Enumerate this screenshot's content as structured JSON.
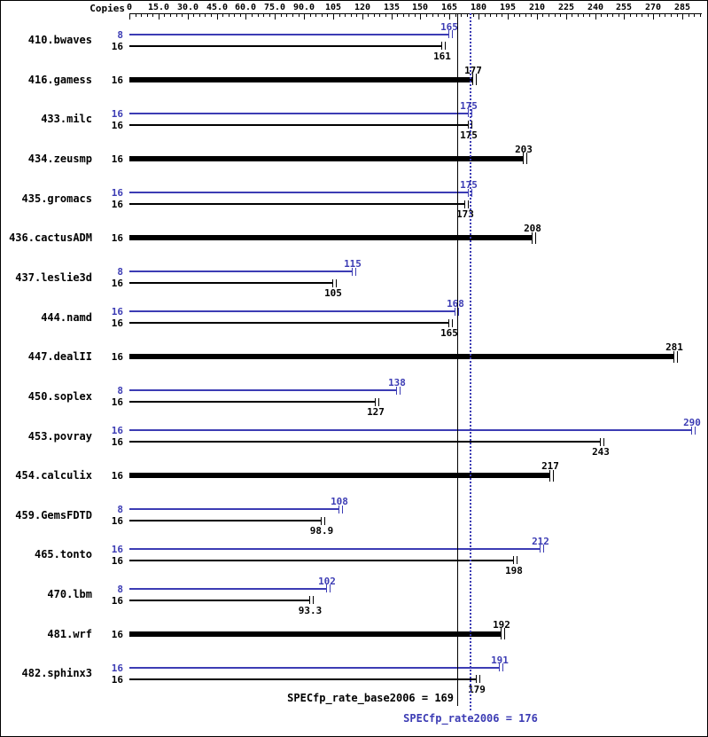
{
  "chart_data": {
    "type": "bar",
    "orientation": "horizontal",
    "copies_header": "Copies",
    "x_axis": {
      "min": 0,
      "max": 295,
      "major_tick_step": 15,
      "minor_tick_step": 3,
      "tick_labels": [
        "0",
        "15.0",
        "30.0",
        "45.0",
        "60.0",
        "75.0",
        "90.0",
        "105",
        "120",
        "135",
        "150",
        "165",
        "180",
        "195",
        "210",
        "225",
        "240",
        "255",
        "270",
        "285"
      ]
    },
    "colors": {
      "peak": "#3c3cb4",
      "base": "#000000"
    },
    "benchmarks": [
      {
        "name": "410.bwaves",
        "bars": [
          {
            "copies": "8",
            "value": 165,
            "label": "165",
            "series": "peak"
          },
          {
            "copies": "16",
            "value": 161,
            "label": "161",
            "series": "base"
          }
        ]
      },
      {
        "name": "416.gamess",
        "bars": [
          {
            "copies": "16",
            "value": 177,
            "label": "177",
            "series": "base"
          }
        ]
      },
      {
        "name": "433.milc",
        "bars": [
          {
            "copies": "16",
            "value": 175,
            "label": "175",
            "series": "peak"
          },
          {
            "copies": "16",
            "value": 175,
            "label": "175",
            "series": "base"
          }
        ]
      },
      {
        "name": "434.zeusmp",
        "bars": [
          {
            "copies": "16",
            "value": 203,
            "label": "203",
            "series": "base"
          }
        ]
      },
      {
        "name": "435.gromacs",
        "bars": [
          {
            "copies": "16",
            "value": 175,
            "label": "175",
            "series": "peak"
          },
          {
            "copies": "16",
            "value": 173,
            "label": "173",
            "series": "base"
          }
        ]
      },
      {
        "name": "436.cactusADM",
        "bars": [
          {
            "copies": "16",
            "value": 208,
            "label": "208",
            "series": "base"
          }
        ]
      },
      {
        "name": "437.leslie3d",
        "bars": [
          {
            "copies": "8",
            "value": 115,
            "label": "115",
            "series": "peak"
          },
          {
            "copies": "16",
            "value": 105,
            "label": "105",
            "series": "base"
          }
        ]
      },
      {
        "name": "444.namd",
        "bars": [
          {
            "copies": "16",
            "value": 168,
            "label": "168",
            "series": "peak"
          },
          {
            "copies": "16",
            "value": 165,
            "label": "165",
            "series": "base"
          }
        ]
      },
      {
        "name": "447.dealII",
        "bars": [
          {
            "copies": "16",
            "value": 281,
            "label": "281",
            "series": "base"
          }
        ]
      },
      {
        "name": "450.soplex",
        "bars": [
          {
            "copies": "8",
            "value": 138,
            "label": "138",
            "series": "peak"
          },
          {
            "copies": "16",
            "value": 127,
            "label": "127",
            "series": "base"
          }
        ]
      },
      {
        "name": "453.povray",
        "bars": [
          {
            "copies": "16",
            "value": 290,
            "label": "290",
            "series": "peak"
          },
          {
            "copies": "16",
            "value": 243,
            "label": "243",
            "series": "base"
          }
        ]
      },
      {
        "name": "454.calculix",
        "bars": [
          {
            "copies": "16",
            "value": 217,
            "label": "217",
            "series": "base"
          }
        ]
      },
      {
        "name": "459.GemsFDTD",
        "bars": [
          {
            "copies": "8",
            "value": 108,
            "label": "108",
            "series": "peak"
          },
          {
            "copies": "16",
            "value": 98.9,
            "label": "98.9",
            "series": "base"
          }
        ]
      },
      {
        "name": "465.tonto",
        "bars": [
          {
            "copies": "16",
            "value": 212,
            "label": "212",
            "series": "peak"
          },
          {
            "copies": "16",
            "value": 198,
            "label": "198",
            "series": "base"
          }
        ]
      },
      {
        "name": "470.lbm",
        "bars": [
          {
            "copies": "8",
            "value": 102,
            "label": "102",
            "series": "peak"
          },
          {
            "copies": "16",
            "value": 93.3,
            "label": "93.3",
            "series": "base"
          }
        ]
      },
      {
        "name": "481.wrf",
        "bars": [
          {
            "copies": "16",
            "value": 192,
            "label": "192",
            "series": "base"
          }
        ]
      },
      {
        "name": "482.sphinx3",
        "bars": [
          {
            "copies": "16",
            "value": 191,
            "label": "191",
            "series": "peak"
          },
          {
            "copies": "16",
            "value": 179,
            "label": "179",
            "series": "base"
          }
        ]
      }
    ],
    "reference_lines": [
      {
        "name": "base",
        "label": "SPECfp_rate_base2006 = 169",
        "value": 169,
        "style": "solid",
        "color": "#000000"
      },
      {
        "name": "peak",
        "label": "SPECfp_rate2006 = 176",
        "value": 176,
        "style": "dotted",
        "color": "#3c3cb4"
      }
    ]
  }
}
